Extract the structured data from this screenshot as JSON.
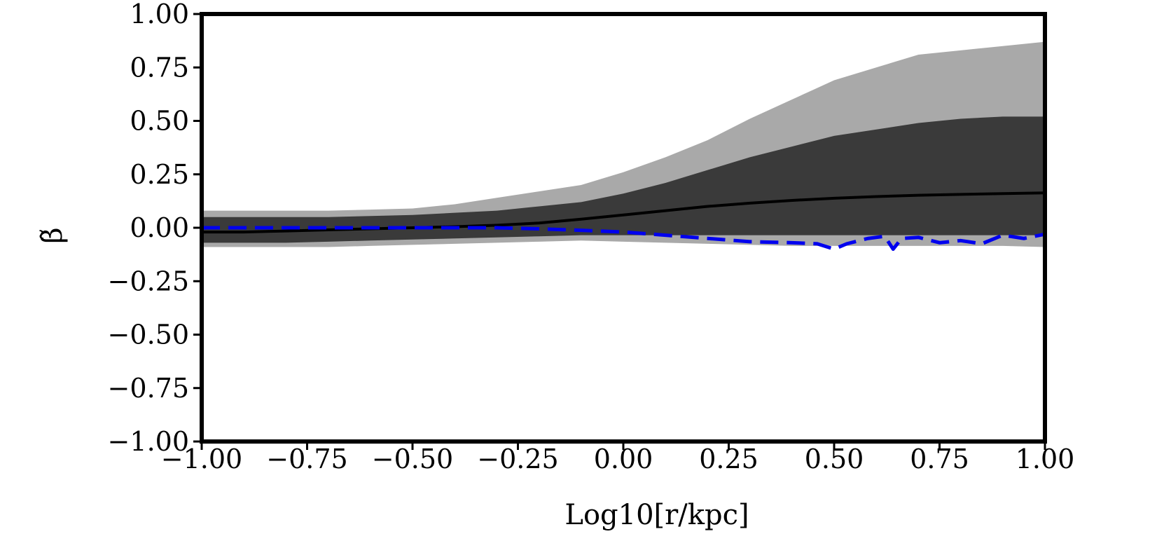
{
  "chart_data": {
    "type": "area",
    "xlabel": "Log10[r/kpc]",
    "ylabel": "β̃",
    "xlim": [
      -1.0,
      1.0
    ],
    "ylim": [
      -1.0,
      1.0
    ],
    "xticks": [
      -1.0,
      -0.75,
      -0.5,
      -0.25,
      0.0,
      0.25,
      0.5,
      0.75,
      1.0
    ],
    "xtick_labels": [
      "−1.00",
      "−0.75",
      "−0.50",
      "−0.25",
      "0.00",
      "0.25",
      "0.50",
      "0.75",
      "1.00"
    ],
    "yticks": [
      1.0,
      0.75,
      0.5,
      0.25,
      0.0,
      -0.25,
      -0.5,
      -0.75,
      -1.0
    ],
    "ytick_labels": [
      "1.00",
      "0.75",
      "0.50",
      "0.25",
      "0.00",
      "−0.25",
      "−0.50",
      "−0.75",
      "−1.00"
    ],
    "grid": false,
    "x": [
      -1.0,
      -0.9,
      -0.8,
      -0.7,
      -0.6,
      -0.5,
      -0.4,
      -0.3,
      -0.2,
      -0.1,
      0.0,
      0.1,
      0.2,
      0.3,
      0.4,
      0.5,
      0.6,
      0.7,
      0.8,
      0.9,
      1.0
    ],
    "bands": [
      {
        "color": "#a9a9a9",
        "upper": [
          0.08,
          0.08,
          0.08,
          0.08,
          0.085,
          0.09,
          0.11,
          0.14,
          0.17,
          0.2,
          0.26,
          0.33,
          0.41,
          0.51,
          0.6,
          0.69,
          0.75,
          0.81,
          0.83,
          0.85,
          0.87
        ],
        "lower": [
          -0.09,
          -0.09,
          -0.09,
          -0.09,
          -0.085,
          -0.08,
          -0.075,
          -0.07,
          -0.065,
          -0.06,
          -0.065,
          -0.07,
          -0.075,
          -0.08,
          -0.085,
          -0.085,
          -0.085,
          -0.085,
          -0.085,
          -0.085,
          -0.09
        ]
      },
      {
        "color": "#3a3a3a",
        "upper": [
          0.05,
          0.05,
          0.05,
          0.05,
          0.055,
          0.06,
          0.07,
          0.08,
          0.1,
          0.12,
          0.16,
          0.21,
          0.27,
          0.33,
          0.38,
          0.43,
          0.46,
          0.49,
          0.51,
          0.52,
          0.52
        ],
        "lower": [
          -0.07,
          -0.07,
          -0.07,
          -0.065,
          -0.06,
          -0.055,
          -0.05,
          -0.045,
          -0.04,
          -0.035,
          -0.035,
          -0.035,
          -0.035,
          -0.035,
          -0.035,
          -0.035,
          -0.035,
          -0.035,
          -0.035,
          -0.035,
          -0.035
        ]
      }
    ],
    "series": [
      {
        "style": "solid",
        "color": "#000000",
        "values": [
          -0.02,
          -0.02,
          -0.015,
          -0.01,
          -0.005,
          0.0,
          0.005,
          0.012,
          0.022,
          0.04,
          0.06,
          0.08,
          0.1,
          0.115,
          0.128,
          0.138,
          0.146,
          0.152,
          0.156,
          0.16,
          0.163
        ]
      },
      {
        "style": "dashed",
        "color": "#0000ee",
        "x": [
          -1.0,
          -0.9,
          -0.8,
          -0.7,
          -0.6,
          -0.5,
          -0.4,
          -0.3,
          -0.2,
          -0.1,
          0.0,
          0.1,
          0.2,
          0.3,
          0.4,
          0.46,
          0.5,
          0.53,
          0.58,
          0.62,
          0.64,
          0.66,
          0.7,
          0.75,
          0.8,
          0.85,
          0.9,
          0.95,
          1.0
        ],
        "values": [
          0.0,
          0.0,
          0.0,
          0.0,
          0.0,
          0.0,
          0.0,
          0.0,
          -0.005,
          -0.012,
          -0.02,
          -0.035,
          -0.05,
          -0.065,
          -0.07,
          -0.075,
          -0.1,
          -0.075,
          -0.05,
          -0.04,
          -0.1,
          -0.05,
          -0.045,
          -0.07,
          -0.06,
          -0.075,
          -0.035,
          -0.05,
          -0.03
        ]
      }
    ]
  }
}
